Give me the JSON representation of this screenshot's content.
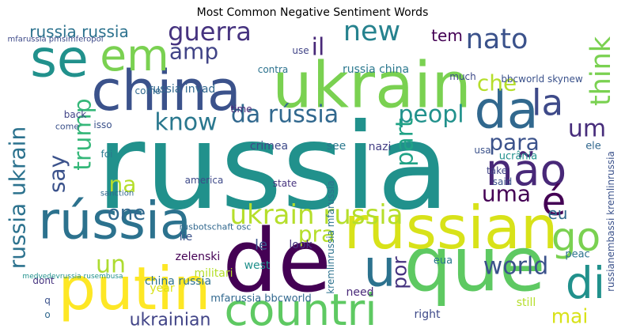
{
  "chart_data": {
    "type": "wordcloud",
    "title": "Most Common Negative Sentiment Words",
    "words": [
      {
        "text": "russia",
        "weight": 150,
        "color": "#21918c"
      },
      {
        "text": "ukrain",
        "weight": 80,
        "color": "#7ad151"
      },
      {
        "text": "china",
        "weight": 70,
        "color": "#3b528b"
      },
      {
        "text": "de",
        "weight": 110,
        "color": "#440154"
      },
      {
        "text": "que",
        "weight": 95,
        "color": "#5ec962"
      },
      {
        "text": "russian",
        "weight": 75,
        "color": "#d8e219"
      },
      {
        "text": "rússia",
        "weight": 65,
        "color": "#2c728e"
      },
      {
        "text": "putin",
        "weight": 75,
        "color": "#fde725"
      },
      {
        "text": "countri",
        "weight": 55,
        "color": "#5ec962"
      },
      {
        "text": "se",
        "weight": 65,
        "color": "#21918c"
      },
      {
        "text": "em",
        "weight": 55,
        "color": "#7ad151"
      },
      {
        "text": "da",
        "weight": 65,
        "color": "#31688e"
      },
      {
        "text": "não",
        "weight": 55,
        "color": "#482878"
      },
      {
        "text": "la",
        "weight": 45,
        "color": "#3e4a89"
      },
      {
        "text": "go",
        "weight": 50,
        "color": "#7ad151"
      },
      {
        "text": "u",
        "weight": 65,
        "color": "#2c728e"
      },
      {
        "text": "di",
        "weight": 55,
        "color": "#21918c"
      },
      {
        "text": "é",
        "weight": 50,
        "color": "#440154"
      },
      {
        "text": "ukrain russia",
        "weight": 34,
        "color": "#b5de2b"
      },
      {
        "text": "da rússia",
        "weight": 30,
        "color": "#31688e"
      },
      {
        "text": "guerra",
        "weight": 32,
        "color": "#46337f"
      },
      {
        "text": "new",
        "weight": 35,
        "color": "#26828e"
      },
      {
        "text": "nato",
        "weight": 35,
        "color": "#3b528b"
      },
      {
        "text": "amp",
        "weight": 28,
        "color": "#414487"
      },
      {
        "text": "il",
        "weight": 30,
        "color": "#482878"
      },
      {
        "text": "think",
        "weight": 35,
        "color": "#7ad151"
      },
      {
        "text": "know",
        "weight": 30,
        "color": "#2a788e"
      },
      {
        "text": "um",
        "weight": 30,
        "color": "#472d7b"
      },
      {
        "text": "che",
        "weight": 28,
        "color": "#b5de2b"
      },
      {
        "text": "peopl",
        "weight": 30,
        "color": "#21918c"
      },
      {
        "text": "part",
        "weight": 30,
        "color": "#20a386"
      },
      {
        "text": "para",
        "weight": 28,
        "color": "#3b528b"
      },
      {
        "text": "uma",
        "weight": 28,
        "color": "#440154"
      },
      {
        "text": "one",
        "weight": 26,
        "color": "#31688e"
      },
      {
        "text": "na",
        "weight": 28,
        "color": "#b5de2b"
      },
      {
        "text": "say",
        "weight": 28,
        "color": "#3b528b"
      },
      {
        "text": "trump",
        "weight": 30,
        "color": "#35b779"
      },
      {
        "text": "russia ukrain",
        "weight": 28,
        "color": "#2c728e"
      },
      {
        "text": "russia russia",
        "weight": 20,
        "color": "#2c728e"
      },
      {
        "text": "pra",
        "weight": 28,
        "color": "#b5de2b"
      },
      {
        "text": "un",
        "weight": 30,
        "color": "#addc30"
      },
      {
        "text": "world",
        "weight": 30,
        "color": "#3b528b"
      },
      {
        "text": "mai",
        "weight": 25,
        "color": "#d8e219"
      },
      {
        "text": "ukrainian",
        "weight": 22,
        "color": "#414487"
      },
      {
        "text": "por",
        "weight": 25,
        "color": "#46337f"
      },
      {
        "text": "eu",
        "weight": 20,
        "color": "#31688e"
      },
      {
        "text": "tem",
        "weight": 20,
        "color": "#440154"
      },
      {
        "text": "russia china",
        "weight": 14,
        "color": "#2a788e"
      },
      {
        "text": "bbcworld skynew",
        "weight": 12,
        "color": "#3b528b"
      },
      {
        "text": "russia invad",
        "weight": 14,
        "color": "#31688e"
      },
      {
        "text": "crimea",
        "weight": 14,
        "color": "#3e4a89"
      },
      {
        "text": "nazi",
        "weight": 14,
        "color": "#433e85"
      },
      {
        "text": "see",
        "weight": 14,
        "color": "#2a788e"
      },
      {
        "text": "lie",
        "weight": 14,
        "color": "#3b528b"
      },
      {
        "text": "zelenski",
        "weight": 14,
        "color": "#440154"
      },
      {
        "text": "west",
        "weight": 14,
        "color": "#21918c"
      },
      {
        "text": "le",
        "weight": 18,
        "color": "#3b528b"
      },
      {
        "text": "look",
        "weight": 14,
        "color": "#46337f"
      },
      {
        "text": "militari",
        "weight": 14,
        "color": "#b5de2b"
      },
      {
        "text": "china russia",
        "weight": 14,
        "color": "#2c728e"
      },
      {
        "text": "year",
        "weight": 14,
        "color": "#d8e219"
      },
      {
        "text": "mfarussia bbcworld",
        "weight": 13,
        "color": "#31688e"
      },
      {
        "text": "need",
        "weight": 14,
        "color": "#482878"
      },
      {
        "text": "right",
        "weight": 14,
        "color": "#3e4a89"
      },
      {
        "text": "still",
        "weight": 14,
        "color": "#b5de2b"
      },
      {
        "text": "eua",
        "weight": 13,
        "color": "#2a788e"
      },
      {
        "text": "usa",
        "weight": 12,
        "color": "#3b528b"
      },
      {
        "text": "ele",
        "weight": 13,
        "color": "#31688e"
      },
      {
        "text": "ucrânia",
        "weight": 13,
        "color": "#21918c"
      },
      {
        "text": "take",
        "weight": 12,
        "color": "#414487"
      },
      {
        "text": "said",
        "weight": 12,
        "color": "#3b528b"
      },
      {
        "text": "peac",
        "weight": 13,
        "color": "#2c728e"
      },
      {
        "text": "state",
        "weight": 12,
        "color": "#46337f"
      },
      {
        "text": "america",
        "weight": 12,
        "color": "#3e4a89"
      },
      {
        "text": "sanction",
        "weight": 10,
        "color": "#31688e"
      },
      {
        "text": "foi",
        "weight": 12,
        "color": "#2a788e"
      },
      {
        "text": "isso",
        "weight": 12,
        "color": "#3b528b"
      },
      {
        "text": "back",
        "weight": 12,
        "color": "#414487"
      },
      {
        "text": "come",
        "weight": 11,
        "color": "#3b528b"
      },
      {
        "text": "como",
        "weight": 12,
        "color": "#31688e"
      },
      {
        "text": "time",
        "weight": 12,
        "color": "#482878"
      },
      {
        "text": "rusbotschaft osc",
        "weight": 11,
        "color": "#31688e"
      },
      {
        "text": "kremlinrussia mfarussia",
        "weight": 12,
        "color": "#2c728e"
      },
      {
        "text": "russianembassi kremlinrussia",
        "weight": 12,
        "color": "#3b528b"
      },
      {
        "text": "mfarussia pmsimferopol",
        "weight": 10,
        "color": "#3e4a89"
      },
      {
        "text": "dont",
        "weight": 12,
        "color": "#46337f"
      },
      {
        "text": "q",
        "weight": 12,
        "color": "#3b528b"
      },
      {
        "text": "o",
        "weight": 12,
        "color": "#31688e"
      },
      {
        "text": "medvedevrussia rusembusa",
        "weight": 9,
        "color": "#21918c"
      },
      {
        "text": "much",
        "weight": 12,
        "color": "#3e4a89"
      },
      {
        "text": "contra",
        "weight": 12,
        "color": "#2c728e"
      },
      {
        "text": "use",
        "weight": 12,
        "color": "#414487"
      }
    ]
  }
}
